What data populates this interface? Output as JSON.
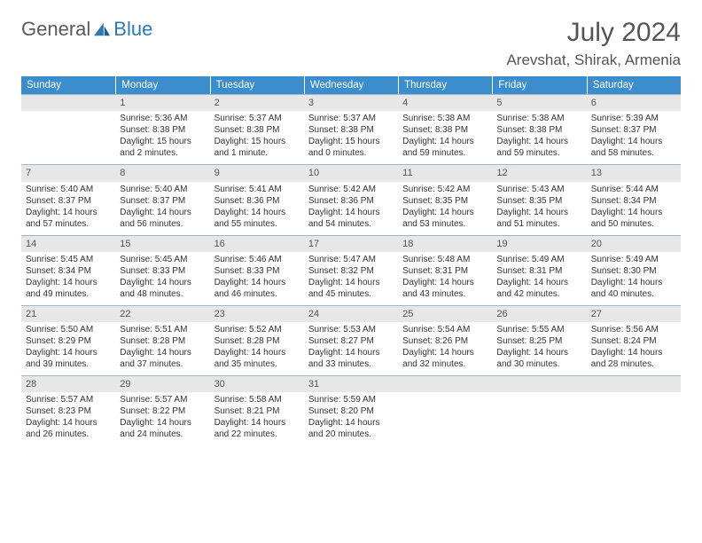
{
  "header": {
    "logo_general": "General",
    "logo_blue": "Blue",
    "title": "July 2024",
    "location": "Arevshat, Shirak, Armenia"
  },
  "calendar": {
    "header_bg": "#3c8dcc",
    "header_fg": "#ffffff",
    "daynum_bg": "#e7e7e7",
    "border_color": "#9bb8d0",
    "day_names": [
      "Sunday",
      "Monday",
      "Tuesday",
      "Wednesday",
      "Thursday",
      "Friday",
      "Saturday"
    ],
    "weeks": [
      [
        null,
        {
          "n": "1",
          "sr": "5:36 AM",
          "ss": "8:38 PM",
          "dl": "15 hours and 2 minutes."
        },
        {
          "n": "2",
          "sr": "5:37 AM",
          "ss": "8:38 PM",
          "dl": "15 hours and 1 minute."
        },
        {
          "n": "3",
          "sr": "5:37 AM",
          "ss": "8:38 PM",
          "dl": "15 hours and 0 minutes."
        },
        {
          "n": "4",
          "sr": "5:38 AM",
          "ss": "8:38 PM",
          "dl": "14 hours and 59 minutes."
        },
        {
          "n": "5",
          "sr": "5:38 AM",
          "ss": "8:38 PM",
          "dl": "14 hours and 59 minutes."
        },
        {
          "n": "6",
          "sr": "5:39 AM",
          "ss": "8:37 PM",
          "dl": "14 hours and 58 minutes."
        }
      ],
      [
        {
          "n": "7",
          "sr": "5:40 AM",
          "ss": "8:37 PM",
          "dl": "14 hours and 57 minutes."
        },
        {
          "n": "8",
          "sr": "5:40 AM",
          "ss": "8:37 PM",
          "dl": "14 hours and 56 minutes."
        },
        {
          "n": "9",
          "sr": "5:41 AM",
          "ss": "8:36 PM",
          "dl": "14 hours and 55 minutes."
        },
        {
          "n": "10",
          "sr": "5:42 AM",
          "ss": "8:36 PM",
          "dl": "14 hours and 54 minutes."
        },
        {
          "n": "11",
          "sr": "5:42 AM",
          "ss": "8:35 PM",
          "dl": "14 hours and 53 minutes."
        },
        {
          "n": "12",
          "sr": "5:43 AM",
          "ss": "8:35 PM",
          "dl": "14 hours and 51 minutes."
        },
        {
          "n": "13",
          "sr": "5:44 AM",
          "ss": "8:34 PM",
          "dl": "14 hours and 50 minutes."
        }
      ],
      [
        {
          "n": "14",
          "sr": "5:45 AM",
          "ss": "8:34 PM",
          "dl": "14 hours and 49 minutes."
        },
        {
          "n": "15",
          "sr": "5:45 AM",
          "ss": "8:33 PM",
          "dl": "14 hours and 48 minutes."
        },
        {
          "n": "16",
          "sr": "5:46 AM",
          "ss": "8:33 PM",
          "dl": "14 hours and 46 minutes."
        },
        {
          "n": "17",
          "sr": "5:47 AM",
          "ss": "8:32 PM",
          "dl": "14 hours and 45 minutes."
        },
        {
          "n": "18",
          "sr": "5:48 AM",
          "ss": "8:31 PM",
          "dl": "14 hours and 43 minutes."
        },
        {
          "n": "19",
          "sr": "5:49 AM",
          "ss": "8:31 PM",
          "dl": "14 hours and 42 minutes."
        },
        {
          "n": "20",
          "sr": "5:49 AM",
          "ss": "8:30 PM",
          "dl": "14 hours and 40 minutes."
        }
      ],
      [
        {
          "n": "21",
          "sr": "5:50 AM",
          "ss": "8:29 PM",
          "dl": "14 hours and 39 minutes."
        },
        {
          "n": "22",
          "sr": "5:51 AM",
          "ss": "8:28 PM",
          "dl": "14 hours and 37 minutes."
        },
        {
          "n": "23",
          "sr": "5:52 AM",
          "ss": "8:28 PM",
          "dl": "14 hours and 35 minutes."
        },
        {
          "n": "24",
          "sr": "5:53 AM",
          "ss": "8:27 PM",
          "dl": "14 hours and 33 minutes."
        },
        {
          "n": "25",
          "sr": "5:54 AM",
          "ss": "8:26 PM",
          "dl": "14 hours and 32 minutes."
        },
        {
          "n": "26",
          "sr": "5:55 AM",
          "ss": "8:25 PM",
          "dl": "14 hours and 30 minutes."
        },
        {
          "n": "27",
          "sr": "5:56 AM",
          "ss": "8:24 PM",
          "dl": "14 hours and 28 minutes."
        }
      ],
      [
        {
          "n": "28",
          "sr": "5:57 AM",
          "ss": "8:23 PM",
          "dl": "14 hours and 26 minutes."
        },
        {
          "n": "29",
          "sr": "5:57 AM",
          "ss": "8:22 PM",
          "dl": "14 hours and 24 minutes."
        },
        {
          "n": "30",
          "sr": "5:58 AM",
          "ss": "8:21 PM",
          "dl": "14 hours and 22 minutes."
        },
        {
          "n": "31",
          "sr": "5:59 AM",
          "ss": "8:20 PM",
          "dl": "14 hours and 20 minutes."
        },
        null,
        null,
        null
      ]
    ],
    "labels": {
      "sunrise": "Sunrise:",
      "sunset": "Sunset:",
      "daylight": "Daylight:"
    }
  }
}
